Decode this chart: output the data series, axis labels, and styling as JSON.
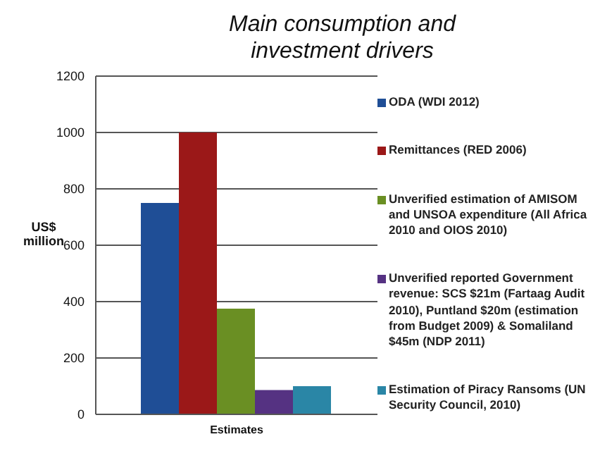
{
  "chart_data": {
    "type": "bar",
    "title": "Main consumption and investment drivers",
    "ylabel": "US$ million",
    "categories": [
      "Estimates"
    ],
    "series": [
      {
        "name": "ODA (WDI 2012)",
        "color": "#1f4e96",
        "values": [
          750
        ]
      },
      {
        "name": "Remittances (RED 2006)",
        "color": "#9b1818",
        "values": [
          1000
        ]
      },
      {
        "name": "Unverified estimation  of AMISOM and UNSOA  expenditure (All Africa 2010 and OIOS 2010)",
        "color": "#6a8f23",
        "values": [
          375
        ]
      },
      {
        "name": "Unverified reported Government revenue: SCS $21m (Fartaag  Audit 2010), Puntland $20m (estimation from Budget 2009) & Somaliland $45m (NDP 2011)",
        "color": "#553282",
        "values": [
          86
        ]
      },
      {
        "name": "Estimation  of Piracy Ransoms (UN Security Council, 2010)",
        "color": "#2a86a6",
        "values": [
          100
        ]
      }
    ],
    "ylim": [
      0,
      1200
    ],
    "yticks": [
      0,
      200,
      400,
      600,
      800,
      1000,
      1200
    ],
    "grid": "y",
    "legend": "right"
  }
}
